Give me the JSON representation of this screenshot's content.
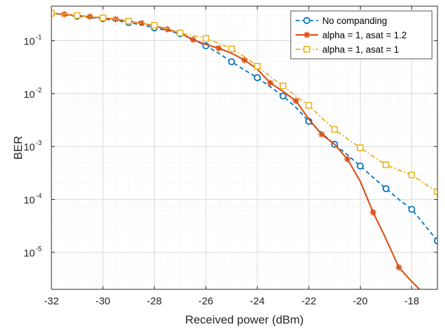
{
  "chart_data": {
    "type": "line",
    "title": "",
    "xlabel": "Received power (dBm)",
    "ylabel": "BER",
    "xlim": [
      -32,
      -17
    ],
    "ylim": [
      2e-06,
      0.45
    ],
    "yscale": "log",
    "grid": true,
    "minor_grid": true,
    "legend_position": "top-right",
    "x_ticks": [
      {
        "value": -32,
        "label": "-32"
      },
      {
        "value": -30,
        "label": "-30"
      },
      {
        "value": -28,
        "label": "-28"
      },
      {
        "value": -26,
        "label": "-26"
      },
      {
        "value": -24,
        "label": "-24"
      },
      {
        "value": -22,
        "label": "-22"
      },
      {
        "value": -20,
        "label": "-20"
      },
      {
        "value": -18,
        "label": "-18"
      }
    ],
    "y_ticks": [
      {
        "value": 0.1,
        "base": "10",
        "exp": "-1"
      },
      {
        "value": 0.01,
        "base": "10",
        "exp": "-2"
      },
      {
        "value": 0.001,
        "base": "10",
        "exp": "-3"
      },
      {
        "value": 0.0001,
        "base": "10",
        "exp": "-4"
      },
      {
        "value": 1e-05,
        "base": "10",
        "exp": "-5"
      }
    ],
    "series": [
      {
        "name": "No companding",
        "color": "#0072BD",
        "line_style": "dashed",
        "marker": "circle",
        "x": [
          -32,
          -31.5,
          -31,
          -30.5,
          -30,
          -29.5,
          -29,
          -28.5,
          -28,
          -27.5,
          -27,
          -26.5,
          -26,
          -25.5,
          -25,
          -24.5,
          -24,
          -23.5,
          -23,
          -22.5,
          -22,
          -21.5,
          -21,
          -20.5,
          -20,
          -19.5,
          -19,
          -18.5,
          -18,
          -17.5,
          -17
        ],
        "y": [
          0.33,
          0.31,
          0.29,
          0.275,
          0.26,
          0.24,
          0.22,
          0.2,
          0.175,
          0.155,
          0.135,
          0.105,
          0.08,
          0.058,
          0.04,
          0.028,
          0.02,
          0.0135,
          0.009,
          0.0055,
          0.003,
          0.0018,
          0.0011,
          0.0007,
          0.00043,
          0.00026,
          0.00016,
          0.0001,
          6.5e-05,
          3.3e-05,
          1.65e-05
        ],
        "marker_x": [
          -31,
          -30,
          -29,
          -28,
          -27,
          -26,
          -25,
          -24,
          -23,
          -22,
          -21,
          -20,
          -19,
          -18,
          -17
        ],
        "marker_y": [
          0.29,
          0.26,
          0.22,
          0.175,
          0.135,
          0.08,
          0.04,
          0.02,
          0.009,
          0.003,
          0.0011,
          0.00043,
          0.00016,
          6.5e-05,
          1.65e-05
        ]
      },
      {
        "name": "alpha = 1, asat = 1.2",
        "color": "#D95319",
        "line_style": "solid",
        "marker": "asterisk",
        "x": [
          -32,
          -31.5,
          -31,
          -30.5,
          -30,
          -29.5,
          -29,
          -28.5,
          -28,
          -27.5,
          -27,
          -26.5,
          -26,
          -25.5,
          -25,
          -24.5,
          -24,
          -23.5,
          -23,
          -22.5,
          -22,
          -21.5,
          -21,
          -20.5,
          -20,
          -19.5,
          -19,
          -18.5,
          -18,
          -17.5
        ],
        "y": [
          0.33,
          0.315,
          0.3,
          0.285,
          0.27,
          0.255,
          0.235,
          0.215,
          0.19,
          0.165,
          0.14,
          0.105,
          0.085,
          0.072,
          0.058,
          0.043,
          0.029,
          0.016,
          0.011,
          0.0073,
          0.0033,
          0.0017,
          0.0011,
          0.00058,
          0.00022,
          5.7e-05,
          1.8e-05,
          5.2e-06,
          2.8e-06,
          1.6e-06
        ],
        "marker_x": [
          -31.5,
          -30.5,
          -29.5,
          -28.5,
          -27.5,
          -26.5,
          -25.5,
          -24.5,
          -23.5,
          -22.5,
          -21.5,
          -20.5,
          -19.5,
          -18.5
        ],
        "marker_y": [
          0.315,
          0.285,
          0.255,
          0.215,
          0.165,
          0.105,
          0.072,
          0.043,
          0.016,
          0.0073,
          0.0017,
          0.00058,
          5.7e-05,
          5.2e-06
        ]
      },
      {
        "name": "alpha = 1, asat = 1",
        "color": "#EDB120",
        "line_style": "dashdot",
        "marker": "square",
        "x": [
          -32,
          -31.5,
          -31,
          -30.5,
          -30,
          -29.5,
          -29,
          -28.5,
          -28,
          -27.5,
          -27,
          -26.5,
          -26,
          -25.5,
          -25,
          -24.5,
          -24,
          -23.5,
          -23,
          -22.5,
          -22,
          -21.5,
          -21,
          -20.5,
          -20,
          -19.5,
          -19,
          -18.5,
          -18,
          -17.5,
          -17
        ],
        "y": [
          0.33,
          0.315,
          0.3,
          0.285,
          0.27,
          0.255,
          0.235,
          0.215,
          0.195,
          0.17,
          0.14,
          0.125,
          0.11,
          0.09,
          0.07,
          0.05,
          0.033,
          0.021,
          0.014,
          0.009,
          0.006,
          0.0035,
          0.0021,
          0.0014,
          0.00095,
          0.00065,
          0.00045,
          0.00036,
          0.00029,
          0.0002,
          0.00014
        ],
        "marker_x": [
          -32,
          -31,
          -30,
          -29,
          -28,
          -27,
          -26,
          -25,
          -24,
          -23,
          -22,
          -21,
          -20,
          -19,
          -18,
          -17
        ],
        "marker_y": [
          0.33,
          0.3,
          0.27,
          0.235,
          0.195,
          0.14,
          0.11,
          0.07,
          0.033,
          0.014,
          0.006,
          0.0021,
          0.00095,
          0.00045,
          0.00029,
          0.00014
        ]
      }
    ]
  }
}
